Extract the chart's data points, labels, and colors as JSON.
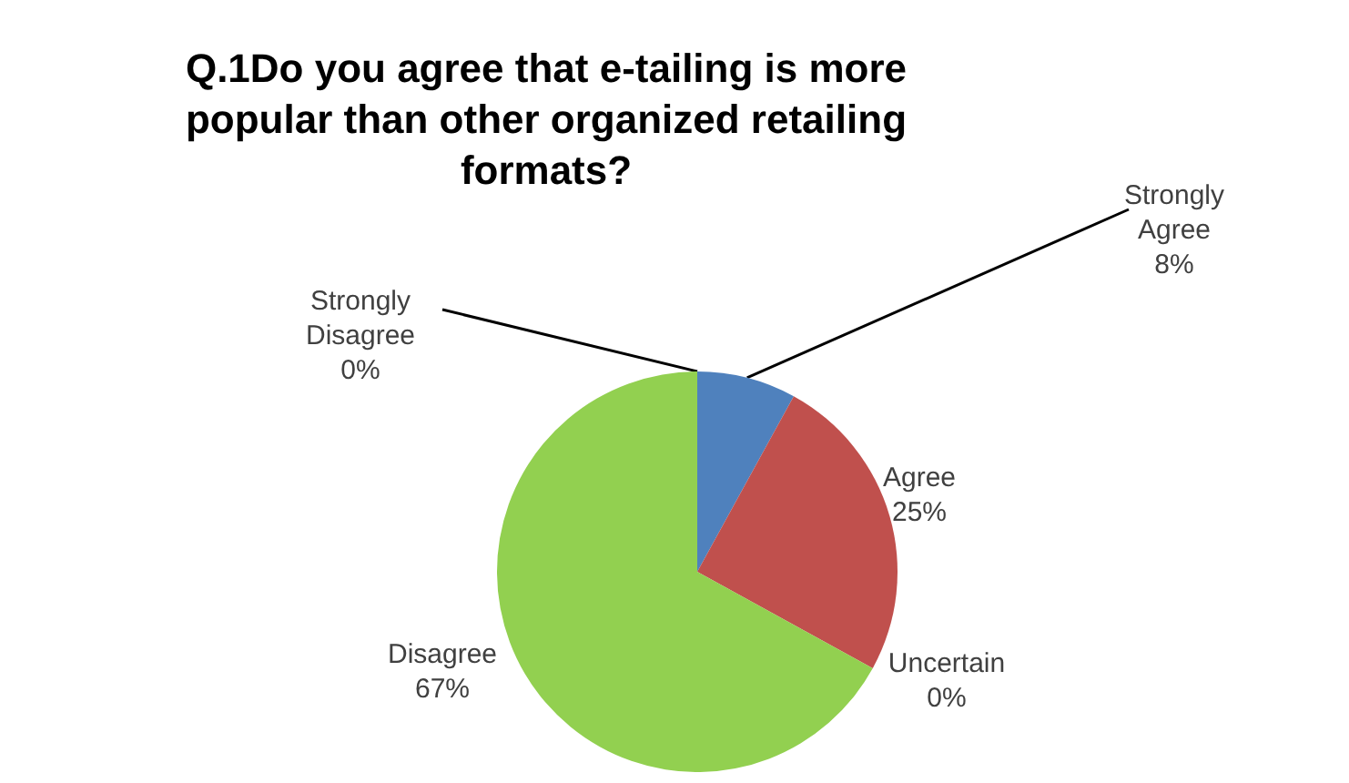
{
  "chart_data": {
    "type": "pie",
    "title": "Q.1Do you agree that e-tailing is more popular than other organized retailing formats?",
    "categories": [
      "Strongly Agree",
      "Agree",
      "Uncertain",
      "Disagree",
      "Strongly Disagree"
    ],
    "values": [
      8,
      25,
      0,
      67,
      0
    ],
    "colors": [
      "#4f81bd",
      "#c0504d",
      "#8064a2",
      "#92d050",
      "#f79646"
    ],
    "value_labels": [
      "8%",
      "25%",
      "0%",
      "67%",
      "0%"
    ]
  }
}
